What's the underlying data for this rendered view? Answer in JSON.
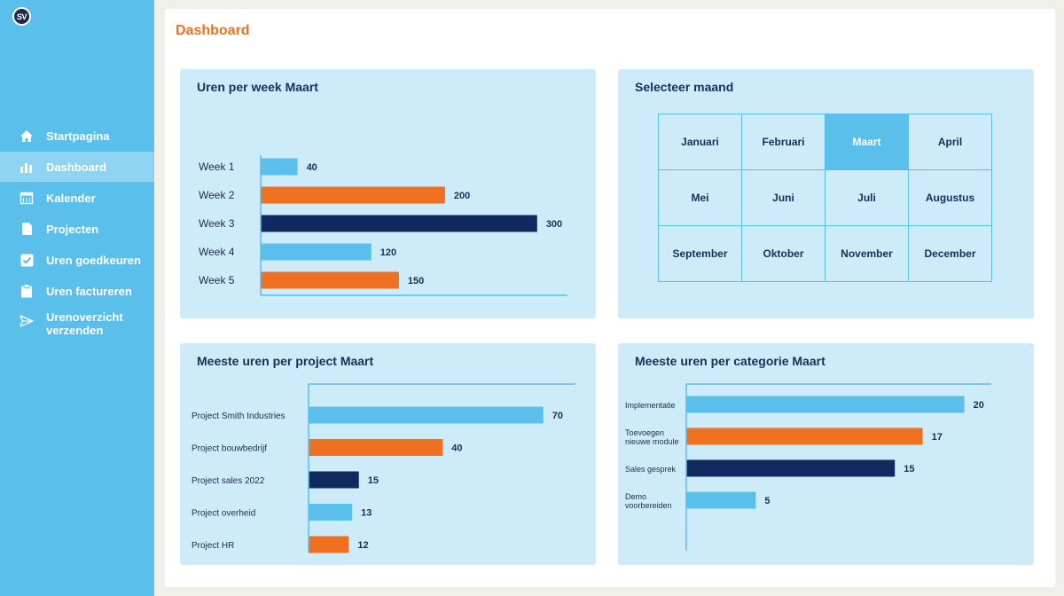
{
  "app": {
    "logo_text": "SV"
  },
  "sidebar": {
    "items": [
      {
        "label": "Startpagina",
        "icon": "home-icon",
        "active": false
      },
      {
        "label": "Dashboard",
        "icon": "bar-chart-icon",
        "active": true
      },
      {
        "label": "Kalender",
        "icon": "calendar-icon",
        "active": false
      },
      {
        "label": "Projecten",
        "icon": "document-icon",
        "active": false
      },
      {
        "label": "Uren goedkeuren",
        "icon": "checkbox-icon",
        "active": false
      },
      {
        "label": "Uren factureren",
        "icon": "clipboard-icon",
        "active": false
      },
      {
        "label": "Urenoverzicht verzenden",
        "icon": "send-icon",
        "active": false
      }
    ]
  },
  "page": {
    "title": "Dashboard"
  },
  "colors": {
    "light_blue": "#5bbfec",
    "orange": "#f07021",
    "navy": "#0f2a5e",
    "card_bg": "#cdebf8"
  },
  "month_selector": {
    "title": "Selecteer maand",
    "months": [
      "Januari",
      "Februari",
      "Maart",
      "April",
      "Mei",
      "Juni",
      "Juli",
      "Augustus",
      "September",
      "Oktober",
      "November",
      "December"
    ],
    "selected": "Maart"
  },
  "chart_data": [
    {
      "type": "bar",
      "orientation": "horizontal",
      "title": "Uren per week Maart",
      "categories": [
        "Week 1",
        "Week 2",
        "Week 3",
        "Week 4",
        "Week 5"
      ],
      "values": [
        40,
        200,
        300,
        120,
        150
      ],
      "bar_colors": [
        "#5bbfec",
        "#f07021",
        "#0f2a5e",
        "#5bbfec",
        "#f07021"
      ],
      "xlim": [
        0,
        330
      ],
      "grid": false
    },
    {
      "type": "bar",
      "orientation": "horizontal",
      "title": "Meeste uren per project Maart",
      "categories": [
        "Project Smith Industries",
        "Project bouwbedrijf",
        "Project sales 2022",
        "Project overheid",
        "Project HR"
      ],
      "values": [
        70,
        40,
        15,
        13,
        12
      ],
      "bar_colors": [
        "#5bbfec",
        "#f07021",
        "#0f2a5e",
        "#5bbfec",
        "#f07021"
      ],
      "xlim": [
        0,
        78
      ],
      "grid": false
    },
    {
      "type": "bar",
      "orientation": "horizontal",
      "title": "Meeste uren per categorie Maart",
      "categories": [
        [
          "Implementatie"
        ],
        [
          "Toevoegen",
          "nieuwe module"
        ],
        [
          "Sales gesprek"
        ],
        [
          "Demo",
          "voorbereiden"
        ]
      ],
      "values": [
        20,
        17,
        15,
        5
      ],
      "bar_colors": [
        "#5bbfec",
        "#f07021",
        "#0f2a5e",
        "#5bbfec"
      ],
      "xlim": [
        0,
        22
      ],
      "grid": false
    }
  ]
}
